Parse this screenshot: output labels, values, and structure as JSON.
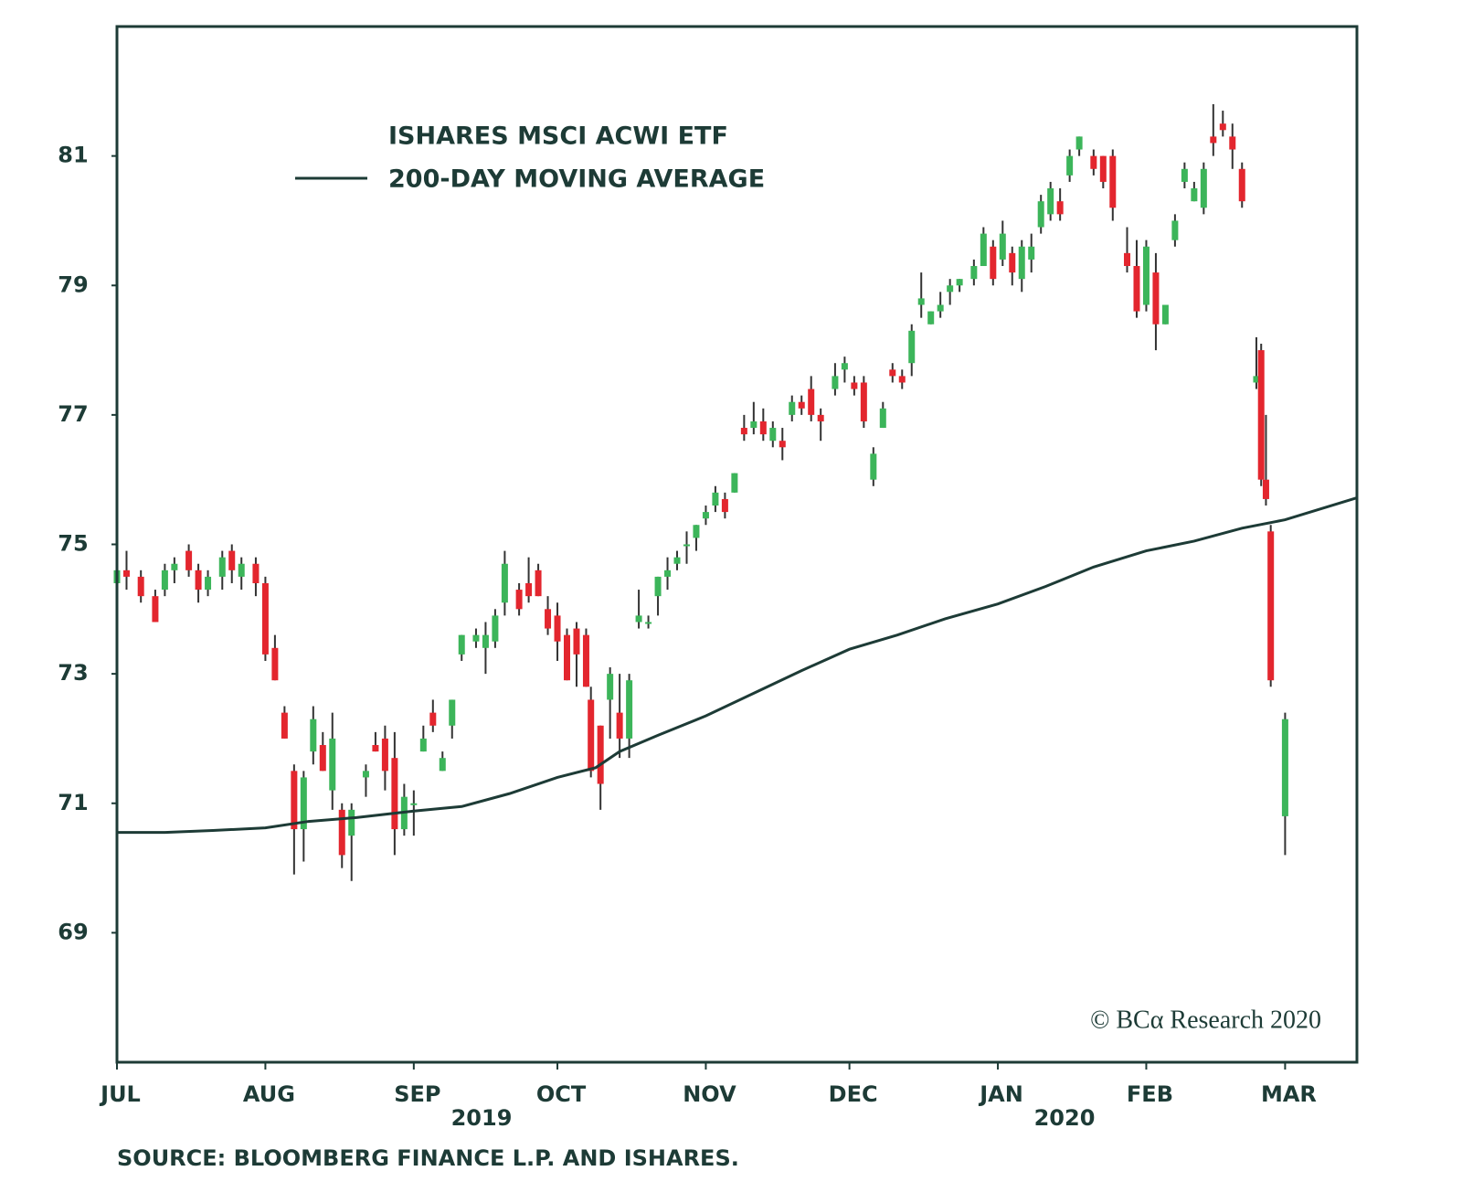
{
  "chart_data": {
    "type": "candlestick",
    "series": [
      {
        "name": "ISHARES MSCI ACWI  ETF",
        "type": "candlestick",
        "up_color": "#3cb55a",
        "down_color": "#e3262e",
        "wick_color": "#333333",
        "x": [
          0,
          2,
          5,
          8,
          10,
          12,
          15,
          17,
          19,
          22,
          24,
          26,
          29,
          31,
          33,
          35,
          37,
          39,
          41,
          43,
          45,
          47,
          49,
          52,
          54,
          56,
          58,
          60,
          62,
          64,
          66,
          68,
          70,
          72,
          75,
          77,
          79,
          81,
          84,
          86,
          88,
          90,
          92,
          94,
          96,
          98,
          99,
          101,
          103,
          105,
          107,
          109,
          111,
          113,
          115,
          117,
          119,
          121,
          123,
          125,
          127,
          129,
          131,
          133,
          135,
          137,
          139,
          141,
          143,
          145,
          147,
          150,
          152,
          154,
          156,
          158,
          160,
          162,
          164,
          166,
          168,
          170,
          172,
          174,
          176,
          179,
          181,
          183,
          185,
          187,
          189,
          191,
          193,
          195,
          197,
          199,
          201,
          204,
          206,
          208,
          211,
          213,
          215,
          217,
          219,
          221,
          223,
          225,
          227,
          229,
          231,
          233,
          235,
          238,
          239,
          240,
          241,
          244
        ],
        "open": [
          74.4,
          74.6,
          74.5,
          74.2,
          74.3,
          74.6,
          74.9,
          74.6,
          74.3,
          74.5,
          74.9,
          74.5,
          74.7,
          74.4,
          73.4,
          72.4,
          71.5,
          70.6,
          71.8,
          71.9,
          71.2,
          70.9,
          70.5,
          71.4,
          71.9,
          72.0,
          71.7,
          70.6,
          71.0,
          71.8,
          72.4,
          71.5,
          72.2,
          73.3,
          73.5,
          73.4,
          73.5,
          74.1,
          74.3,
          74.4,
          74.6,
          74.0,
          73.9,
          73.6,
          73.7,
          73.6,
          72.6,
          72.2,
          72.6,
          72.4,
          72.0,
          73.8,
          73.8,
          74.2,
          74.5,
          74.7,
          75.0,
          75.1,
          75.4,
          75.6,
          75.7,
          75.8,
          76.8,
          76.8,
          76.9,
          76.6,
          76.6,
          77.0,
          77.2,
          77.4,
          77.0,
          77.4,
          77.7,
          77.5,
          77.5,
          76.0,
          76.8,
          77.7,
          77.6,
          77.8,
          78.7,
          78.4,
          78.6,
          78.9,
          79.0,
          79.1,
          79.3,
          79.6,
          79.4,
          79.5,
          79.1,
          79.4,
          79.9,
          80.1,
          80.3,
          80.7,
          81.1,
          81.0,
          81.0,
          81.0,
          79.5,
          79.3,
          78.7,
          79.2,
          78.4,
          79.7,
          80.6,
          80.3,
          80.2,
          81.3,
          81.5,
          81.3,
          80.8,
          77.5,
          78.0,
          76.0,
          75.2,
          70.8
        ],
        "high": [
          74.9,
          74.9,
          74.6,
          74.3,
          74.7,
          74.8,
          75.0,
          74.7,
          74.6,
          74.9,
          75.0,
          74.8,
          74.8,
          74.5,
          73.6,
          72.5,
          71.6,
          71.5,
          72.5,
          72.1,
          72.4,
          71.0,
          71.0,
          71.6,
          72.1,
          72.2,
          72.1,
          71.3,
          71.2,
          72.2,
          72.6,
          71.8,
          72.6,
          73.6,
          73.7,
          73.8,
          74.0,
          74.9,
          74.4,
          74.8,
          74.7,
          74.2,
          74.1,
          73.7,
          73.8,
          73.7,
          72.8,
          72.2,
          73.1,
          73.0,
          73.0,
          74.3,
          73.9,
          74.5,
          74.8,
          74.9,
          75.2,
          75.3,
          75.6,
          75.9,
          75.8,
          76.1,
          77.0,
          77.2,
          77.1,
          76.9,
          76.8,
          77.3,
          77.3,
          77.6,
          77.1,
          77.8,
          77.9,
          77.6,
          77.6,
          76.5,
          77.2,
          77.8,
          77.7,
          78.4,
          79.2,
          78.6,
          78.9,
          79.1,
          79.1,
          79.4,
          79.9,
          79.7,
          80.0,
          79.6,
          79.7,
          79.8,
          80.4,
          80.6,
          80.5,
          81.1,
          81.3,
          81.1,
          81.0,
          81.1,
          79.9,
          79.7,
          79.7,
          79.5,
          78.7,
          80.1,
          80.9,
          80.6,
          80.9,
          81.8,
          81.7,
          81.5,
          80.9,
          78.2,
          78.1,
          77.0,
          75.3,
          72.4
        ],
        "low": [
          74.1,
          74.3,
          74.1,
          73.8,
          74.2,
          74.4,
          74.5,
          74.1,
          74.2,
          74.3,
          74.4,
          74.3,
          74.2,
          73.2,
          72.9,
          72.0,
          69.9,
          70.1,
          71.6,
          71.5,
          70.9,
          70.0,
          69.8,
          71.1,
          71.8,
          71.2,
          70.2,
          70.5,
          70.5,
          71.8,
          72.1,
          71.5,
          72.0,
          73.2,
          73.4,
          73.0,
          73.4,
          73.9,
          73.9,
          74.1,
          74.2,
          73.6,
          73.2,
          72.9,
          72.8,
          72.8,
          71.4,
          70.9,
          72.0,
          71.7,
          71.7,
          73.7,
          73.7,
          73.9,
          74.3,
          74.6,
          74.7,
          74.9,
          75.3,
          75.5,
          75.4,
          75.8,
          76.6,
          76.7,
          76.6,
          76.5,
          76.3,
          76.9,
          77.0,
          76.9,
          76.6,
          77.3,
          77.5,
          77.3,
          76.8,
          75.9,
          76.8,
          77.5,
          77.4,
          77.6,
          78.5,
          78.4,
          78.5,
          78.7,
          78.9,
          79.0,
          79.3,
          79.0,
          79.3,
          79.0,
          78.9,
          79.2,
          79.8,
          80.0,
          80.0,
          80.6,
          81.0,
          80.7,
          80.5,
          80.0,
          79.2,
          78.5,
          78.6,
          78.0,
          78.4,
          79.6,
          80.5,
          80.3,
          80.1,
          81.0,
          81.3,
          80.8,
          80.2,
          77.4,
          75.9,
          75.6,
          72.8,
          70.2
        ],
        "close": [
          74.6,
          74.5,
          74.2,
          73.8,
          74.6,
          74.7,
          74.6,
          74.3,
          74.5,
          74.8,
          74.6,
          74.7,
          74.4,
          73.3,
          72.9,
          72.0,
          70.6,
          71.4,
          72.3,
          71.5,
          72.0,
          70.2,
          70.9,
          71.5,
          71.8,
          71.5,
          70.6,
          71.1,
          71.0,
          72.0,
          72.2,
          71.7,
          72.6,
          73.6,
          73.6,
          73.6,
          73.9,
          74.7,
          74.0,
          74.2,
          74.2,
          73.7,
          73.5,
          72.9,
          73.3,
          72.8,
          71.5,
          71.3,
          73.0,
          72.0,
          72.9,
          73.9,
          73.8,
          74.5,
          74.6,
          74.8,
          75.0,
          75.3,
          75.5,
          75.8,
          75.5,
          76.1,
          76.7,
          76.9,
          76.7,
          76.8,
          76.5,
          77.2,
          77.1,
          77.0,
          76.9,
          77.6,
          77.8,
          77.4,
          76.9,
          76.4,
          77.1,
          77.6,
          77.5,
          78.3,
          78.8,
          78.6,
          78.7,
          79.0,
          79.1,
          79.3,
          79.8,
          79.1,
          79.8,
          79.2,
          79.6,
          79.6,
          80.3,
          80.5,
          80.1,
          81.0,
          81.3,
          80.8,
          80.6,
          80.2,
          79.3,
          78.6,
          79.6,
          78.4,
          78.7,
          80.0,
          80.8,
          80.5,
          80.8,
          81.2,
          81.4,
          81.1,
          80.3,
          77.6,
          76.0,
          75.7,
          72.9,
          72.3
        ]
      },
      {
        "name": "200-DAY MOVING AVERAGE",
        "type": "line",
        "color": "#1d3b36",
        "x": [
          0,
          10,
          20,
          31,
          40,
          50,
          62,
          72,
          82,
          92,
          100,
          105,
          113,
          123,
          133,
          143,
          153,
          163,
          173,
          184,
          194,
          204,
          215,
          225,
          235,
          244,
          259
        ],
        "values": [
          70.55,
          70.55,
          70.58,
          70.62,
          70.72,
          70.78,
          70.88,
          70.95,
          71.15,
          71.4,
          71.55,
          71.8,
          72.05,
          72.35,
          72.7,
          73.05,
          73.38,
          73.6,
          73.85,
          74.08,
          74.35,
          74.65,
          74.9,
          75.05,
          75.25,
          75.38,
          75.72
        ]
      }
    ],
    "xlim": [
      0,
      259
    ],
    "ylim": [
      67,
      83
    ],
    "yticks": [
      69,
      71,
      73,
      75,
      77,
      79,
      81
    ],
    "xticks": [
      {
        "value": 0,
        "label": "JUL"
      },
      {
        "value": 31,
        "label": "AUG"
      },
      {
        "value": 62,
        "label": "SEP"
      },
      {
        "value": 92,
        "label": "OCT"
      },
      {
        "value": 123,
        "label": "NOV"
      },
      {
        "value": 153,
        "label": "DEC"
      },
      {
        "value": 184,
        "label": "JAN"
      },
      {
        "value": 215,
        "label": "FEB"
      },
      {
        "value": 244,
        "label": "MAR"
      }
    ],
    "annotations": [
      "2019",
      "2020"
    ],
    "copyright": "© BCα Research 2020",
    "source": "SOURCE: BLOOMBERG FINANCE L.P. AND ISHARES.",
    "grid": false
  }
}
